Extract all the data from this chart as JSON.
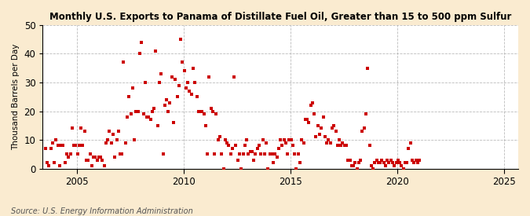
{
  "title": "Monthly U.S. Exports to Panama of Distillate Fuel Oil, Greater than 15 to 500 ppm Sulfur",
  "ylabel": "Thousand Barrels per Day",
  "source": "Source: U.S. Energy Information Administration",
  "bg_color": "#faebd0",
  "plot_bg_color": "#ffffff",
  "marker_color": "#cc0000",
  "marker_size": 3.5,
  "ylim": [
    0,
    50
  ],
  "yticks": [
    0,
    10,
    20,
    30,
    40,
    50
  ],
  "xlim_start": [
    2003,
    6,
    1
  ],
  "xlim_end": [
    2025,
    9,
    1
  ],
  "xtick_years": [
    2005,
    2010,
    2015,
    2020,
    2025
  ],
  "start_year": 2003,
  "start_month": 7,
  "values": [
    7,
    2,
    1,
    7,
    9,
    2,
    10,
    8,
    1,
    8,
    8,
    2,
    5,
    4,
    5,
    14,
    8,
    8,
    5,
    8,
    14,
    8,
    13,
    3,
    3,
    5,
    1,
    4,
    4,
    3,
    4,
    4,
    3,
    1,
    9,
    10,
    13,
    9,
    12,
    4,
    10,
    13,
    5,
    5,
    37,
    9,
    18,
    25,
    19,
    28,
    10,
    20,
    20,
    40,
    44,
    19,
    30,
    18,
    18,
    17,
    20,
    21,
    41,
    15,
    30,
    33,
    5,
    22,
    24,
    20,
    23,
    32,
    16,
    31,
    25,
    29,
    45,
    37,
    34,
    28,
    30,
    27,
    26,
    35,
    30,
    25,
    20,
    20,
    20,
    19,
    15,
    5,
    32,
    21,
    20,
    5,
    19,
    10,
    11,
    5,
    0,
    10,
    9,
    8,
    5,
    7,
    32,
    8,
    3,
    5,
    0,
    5,
    8,
    10,
    5,
    6,
    6,
    3,
    5,
    7,
    8,
    5,
    10,
    5,
    9,
    0,
    5,
    5,
    2,
    5,
    4,
    7,
    10,
    8,
    10,
    9,
    5,
    10,
    10,
    8,
    5,
    0,
    5,
    2,
    10,
    9,
    17,
    17,
    16,
    22,
    23,
    19,
    11,
    15,
    12,
    14,
    18,
    11,
    9,
    10,
    9,
    14,
    15,
    13,
    8,
    10,
    8,
    9,
    8,
    8,
    3,
    3,
    1,
    1,
    2,
    0,
    2,
    3,
    13,
    14,
    19,
    35,
    8,
    1,
    0,
    2,
    3,
    2,
    2,
    3,
    2,
    1,
    3,
    2,
    3,
    2,
    1,
    2,
    3,
    2,
    1,
    0,
    2,
    2,
    7,
    9,
    3,
    2,
    3,
    2,
    3
  ]
}
